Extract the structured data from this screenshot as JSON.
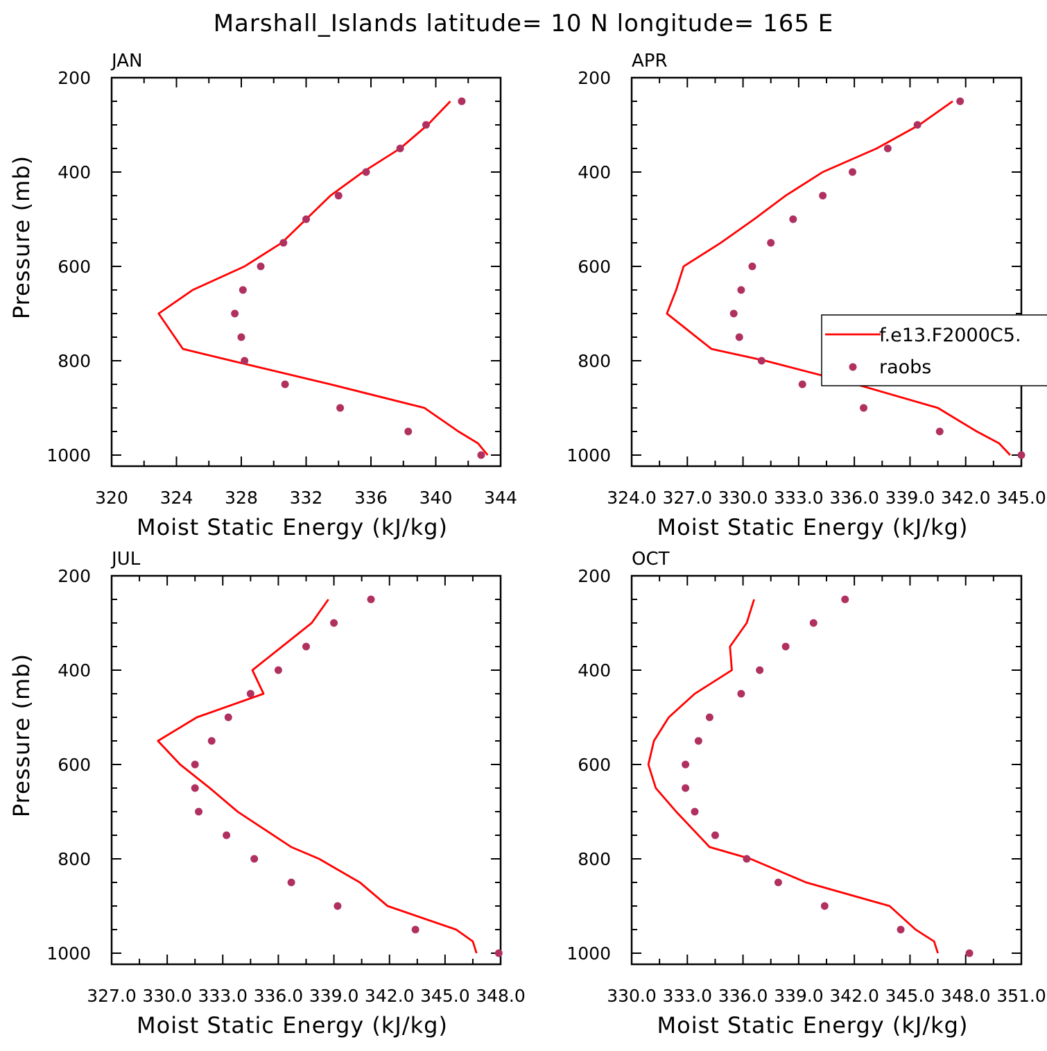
{
  "title": "Marshall_Islands   latitude= 10 N longitude= 165 E",
  "colors": {
    "model": "#ff0000",
    "raobs": "#b03060",
    "axis": "#000000"
  },
  "legend": {
    "entries": [
      {
        "label": "f.e13.F2000C5.",
        "style": "line",
        "color": "#ff0000"
      },
      {
        "label": "raobs",
        "style": "marker",
        "color": "#b03060"
      }
    ],
    "placement": "right, overlapping APR panel"
  },
  "chart_data": [
    {
      "type": "line",
      "panel": "JAN",
      "xlabel": "Moist Static Energy (kJ/kg)",
      "ylabel": "Pressure (mb)",
      "xlim": [
        320,
        344
      ],
      "ylim": [
        1000,
        200
      ],
      "x_ticks": [
        "320",
        "324",
        "328",
        "332",
        "336",
        "340",
        "344"
      ],
      "y_ticks": [
        "200",
        "400",
        "600",
        "800",
        "1000"
      ],
      "series": [
        {
          "name": "f.e13.F2000C5.",
          "style": "line",
          "pressure": [
            1000,
            975,
            950,
            900,
            850,
            800,
            775,
            700,
            650,
            600,
            550,
            500,
            450,
            400,
            350,
            300,
            250
          ],
          "mse": [
            343.2,
            342.6,
            341.4,
            339.3,
            333.5,
            327.4,
            324.4,
            322.9,
            325.0,
            328.2,
            330.5,
            332.0,
            333.5,
            335.5,
            337.8,
            339.5,
            340.9
          ]
        },
        {
          "name": "raobs",
          "style": "marker",
          "pressure": [
            1000,
            950,
            900,
            850,
            800,
            750,
            700,
            650,
            600,
            550,
            500,
            450,
            400,
            350,
            300,
            250
          ],
          "mse": [
            342.8,
            338.3,
            334.1,
            330.7,
            328.2,
            328.0,
            327.6,
            328.1,
            329.2,
            330.6,
            332.0,
            334.0,
            335.7,
            337.8,
            339.4,
            341.6
          ]
        }
      ]
    },
    {
      "type": "line",
      "panel": "APR",
      "xlabel": "Moist Static Energy (kJ/kg)",
      "ylabel": "",
      "xlim": [
        324.0,
        345.0
      ],
      "ylim": [
        1000,
        200
      ],
      "x_ticks": [
        "324.0",
        "327.0",
        "330.0",
        "333.0",
        "336.0",
        "339.0",
        "342.0",
        "345.0"
      ],
      "y_ticks": [
        "200",
        "400",
        "600",
        "800",
        "1000"
      ],
      "series": [
        {
          "name": "f.e13.F2000C5.",
          "style": "line",
          "pressure": [
            1000,
            975,
            950,
            900,
            850,
            800,
            775,
            700,
            650,
            600,
            550,
            500,
            450,
            400,
            350,
            300,
            250
          ],
          "mse": [
            344.4,
            343.8,
            342.6,
            340.5,
            336.1,
            331.2,
            328.3,
            325.9,
            326.4,
            326.8,
            328.8,
            330.6,
            332.3,
            334.3,
            337.2,
            339.5,
            341.3
          ]
        },
        {
          "name": "raobs",
          "style": "marker",
          "pressure": [
            1000,
            950,
            900,
            850,
            800,
            750,
            700,
            650,
            600,
            550,
            500,
            450,
            400,
            350,
            300,
            250
          ],
          "mse": [
            345.0,
            340.6,
            336.5,
            333.2,
            331.0,
            329.8,
            329.5,
            329.9,
            330.5,
            331.5,
            332.7,
            334.3,
            335.9,
            337.8,
            339.4,
            341.7
          ]
        }
      ]
    },
    {
      "type": "line",
      "panel": "JUL",
      "xlabel": "Moist Static Energy (kJ/kg)",
      "ylabel": "Pressure (mb)",
      "xlim": [
        327.0,
        348.0
      ],
      "ylim": [
        1000,
        200
      ],
      "x_ticks": [
        "327.0",
        "330.0",
        "333.0",
        "336.0",
        "339.0",
        "342.0",
        "345.0",
        "348.0"
      ],
      "y_ticks": [
        "200",
        "400",
        "600",
        "800",
        "1000"
      ],
      "series": [
        {
          "name": "f.e13.F2000C5.",
          "style": "line",
          "pressure": [
            1000,
            975,
            950,
            900,
            850,
            800,
            775,
            700,
            650,
            600,
            550,
            500,
            450,
            400,
            350,
            300,
            250
          ],
          "mse": [
            346.7,
            346.5,
            345.6,
            341.9,
            340.4,
            338.2,
            336.7,
            333.8,
            332.3,
            330.7,
            329.5,
            331.6,
            335.2,
            334.6,
            336.2,
            337.8,
            338.7
          ]
        },
        {
          "name": "raobs",
          "style": "marker",
          "pressure": [
            1000,
            950,
            900,
            850,
            800,
            750,
            700,
            650,
            600,
            550,
            500,
            450,
            400,
            350,
            300,
            250
          ],
          "mse": [
            347.9,
            343.4,
            339.2,
            336.7,
            334.7,
            333.2,
            331.7,
            331.5,
            331.5,
            332.4,
            333.3,
            334.5,
            336.0,
            337.5,
            339.0,
            341.0
          ]
        }
      ]
    },
    {
      "type": "line",
      "panel": "OCT",
      "xlabel": "Moist Static Energy (kJ/kg)",
      "ylabel": "",
      "xlim": [
        330.0,
        351.0
      ],
      "ylim": [
        1000,
        200
      ],
      "x_ticks": [
        "330.0",
        "333.0",
        "336.0",
        "339.0",
        "342.0",
        "345.0",
        "348.0",
        "351.0"
      ],
      "y_ticks": [
        "200",
        "400",
        "600",
        "800",
        "1000"
      ],
      "series": [
        {
          "name": "f.e13.F2000C5.",
          "style": "line",
          "pressure": [
            1000,
            975,
            950,
            900,
            850,
            800,
            775,
            700,
            650,
            600,
            550,
            500,
            450,
            400,
            350,
            300,
            250
          ],
          "mse": [
            346.5,
            346.3,
            345.3,
            343.9,
            339.4,
            336.4,
            334.2,
            332.4,
            331.3,
            330.9,
            331.2,
            332.0,
            333.4,
            335.4,
            335.3,
            336.2,
            336.6
          ]
        },
        {
          "name": "raobs",
          "style": "marker",
          "pressure": [
            1000,
            950,
            900,
            850,
            800,
            750,
            700,
            650,
            600,
            550,
            500,
            450,
            400,
            350,
            300,
            250
          ],
          "mse": [
            348.2,
            344.5,
            340.4,
            337.9,
            336.2,
            334.5,
            333.4,
            332.9,
            332.9,
            333.6,
            334.2,
            335.9,
            336.9,
            338.3,
            339.8,
            341.5
          ]
        }
      ]
    }
  ]
}
